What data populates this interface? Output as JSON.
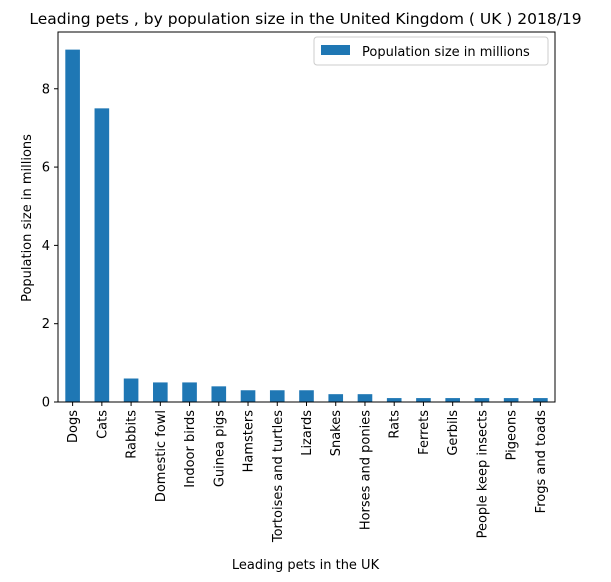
{
  "chart_data": {
    "type": "bar",
    "title": "Leading pets , by population size in the United Kingdom ( UK ) 2018/19",
    "xlabel": "Leading pets in the UK",
    "ylabel": "Population size in millions",
    "ylim": [
      0,
      9.45
    ],
    "yticks": [
      0,
      2,
      4,
      6,
      8
    ],
    "grid": false,
    "legend_position": "top-right",
    "bar_color": "#1f77b4",
    "categories": [
      "Dogs",
      "Cats",
      "Rabbits",
      "Domestic fowl",
      "Indoor birds",
      "Guinea pigs",
      "Hamsters",
      "Tortoises and turtles",
      "Lizards",
      "Snakes",
      "Horses and ponies",
      "Rats",
      "Ferrets",
      "Gerbils",
      "People keep insects",
      "Pigeons",
      "Frogs and toads"
    ],
    "series": [
      {
        "name": "Population size in millions",
        "values": [
          9.0,
          7.5,
          0.6,
          0.5,
          0.5,
          0.4,
          0.3,
          0.3,
          0.3,
          0.2,
          0.2,
          0.1,
          0.1,
          0.1,
          0.1,
          0.1,
          0.1
        ]
      }
    ]
  }
}
